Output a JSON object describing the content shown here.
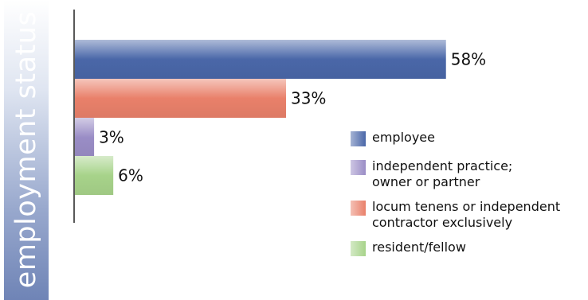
{
  "side_title": "employment status",
  "chart_data": {
    "type": "bar",
    "orientation": "horizontal",
    "categories": [
      "employee",
      "locum tenens or independent contractor exclusively",
      "independent practice; owner or partner",
      "resident/fellow"
    ],
    "values": [
      58,
      33,
      3,
      6
    ],
    "value_labels": [
      "58%",
      "33%",
      "3%",
      "6%"
    ],
    "colors": [
      "#4a67a8",
      "#e9806a",
      "#9a8dc6",
      "#a7d38a"
    ],
    "xlim": [
      0,
      100
    ],
    "legend_position": "right",
    "grid": false
  },
  "legend": [
    {
      "label": "employee",
      "color": "#4a67a8"
    },
    {
      "label": "independent practice;\nowner or partner",
      "color": "#9a8dc6"
    },
    {
      "label": "locum tenens or independent\ncontractor exclusively",
      "color": "#e9806a"
    },
    {
      "label": "resident/fellow",
      "color": "#a7d38a"
    }
  ]
}
